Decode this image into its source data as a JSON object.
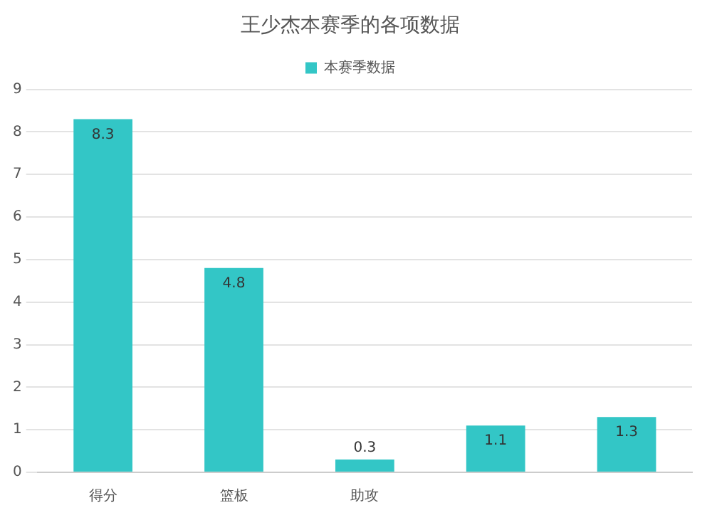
{
  "chart_data": {
    "type": "bar",
    "title": "王少杰本赛季的各项数据",
    "categories": [
      "得分",
      "篮板",
      "助攻",
      null,
      null
    ],
    "series": [
      {
        "name": "本赛季数据",
        "color": "#33c6c6",
        "values": [
          8.3,
          4.8,
          0.3,
          1.1,
          1.3
        ]
      }
    ],
    "ylim": [
      0,
      9
    ],
    "yticks": [
      0,
      1,
      2,
      3,
      4,
      5,
      6,
      7,
      8,
      9
    ],
    "grid": "y",
    "legend": "top",
    "data_labels": true
  }
}
